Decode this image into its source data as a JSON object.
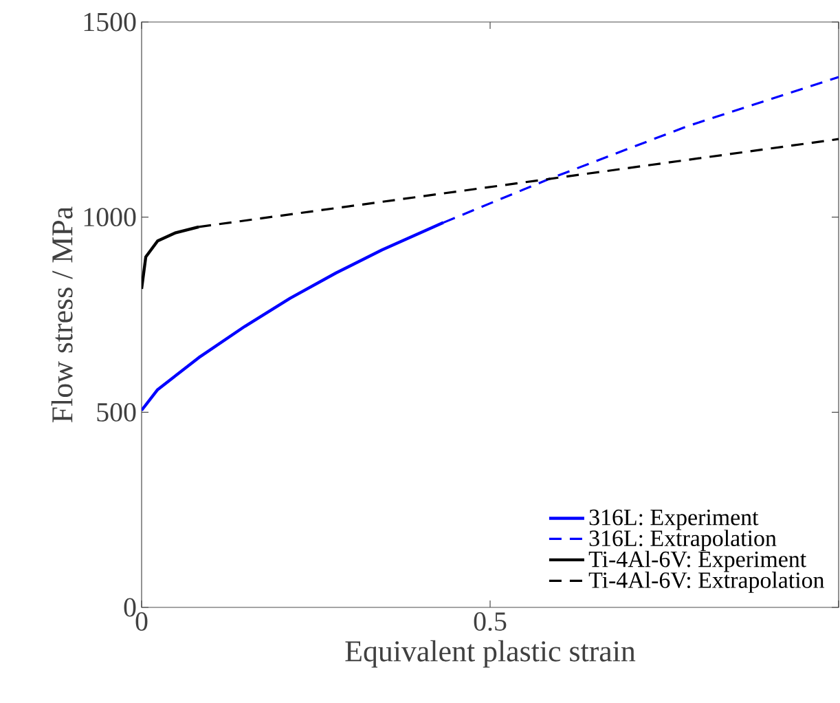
{
  "chart_data": {
    "type": "line",
    "xlabel": "Equivalent plastic strain",
    "ylabel": "Flow stress / MPa",
    "xlim": [
      0,
      1
    ],
    "ylim": [
      0,
      1500
    ],
    "xticks": [
      0,
      0.5,
      {
        "value": 1,
        "label": null
      }
    ],
    "yticks": [
      0,
      500,
      1000,
      1500
    ],
    "grid": false,
    "legend": "bottom right",
    "marker": "none",
    "series": [
      {
        "name": "316L: Experiment",
        "color": "#0000ff",
        "line_style": "solid",
        "x": [
          0,
          0.023,
          0.082,
          0.148,
          0.213,
          0.279,
          0.345,
          0.433
        ],
        "values": [
          505,
          558,
          640,
          720,
          792,
          857,
          916,
          986
        ]
      },
      {
        "name": "316L: Extrapolation",
        "color": "#0000ff",
        "line_style": "dashed",
        "x": [
          0.433,
          0.585,
          0.783,
          1.0
        ],
        "values": [
          986,
          1098,
          1233,
          1359
        ]
      },
      {
        "name": "Ti-4Al-6V: Experiment",
        "color": "#000000",
        "line_style": "solid",
        "x": [
          0,
          0.006,
          0.023,
          0.049,
          0.082
        ],
        "values": [
          816,
          898,
          939,
          960,
          975
        ]
      },
      {
        "name": "Ti-4Al-6V: Extrapolation",
        "color": "#000000",
        "line_style": "dashed",
        "x": [
          0.082,
          0.585,
          1.0
        ],
        "values": [
          975,
          1098,
          1200
        ]
      }
    ]
  }
}
